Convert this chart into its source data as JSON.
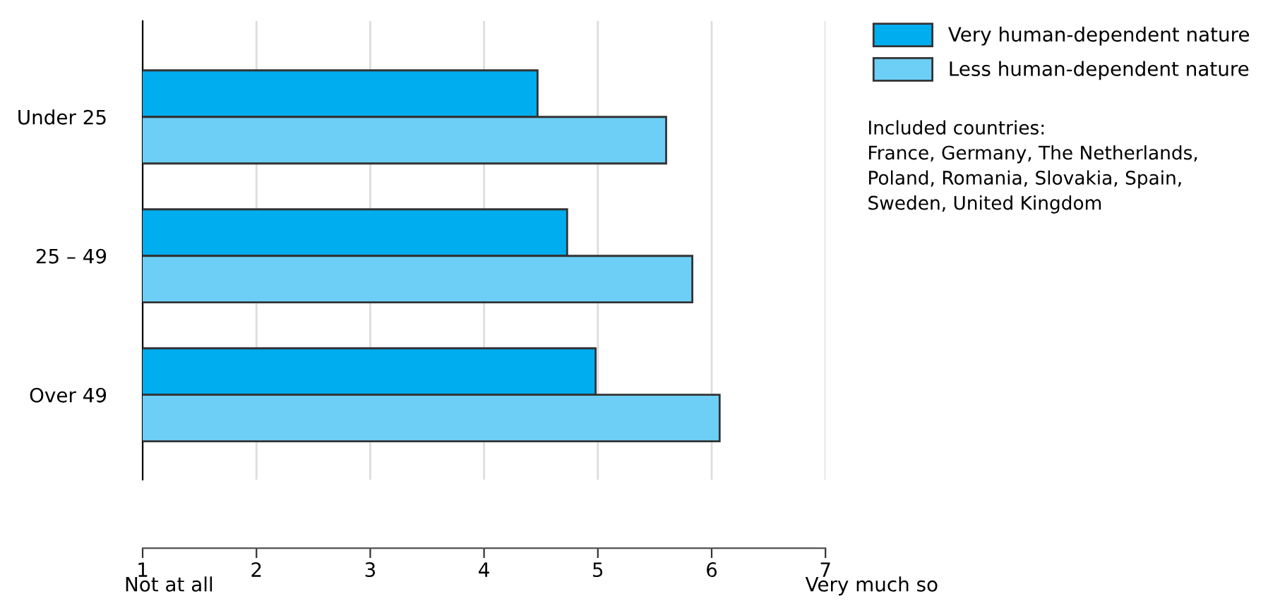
{
  "chart_data": {
    "type": "bar",
    "orientation": "horizontal",
    "categories": [
      "Under 25",
      "25 – 49",
      "Over 49"
    ],
    "series": [
      {
        "name": "Very human-dependent nature",
        "color": "#00adef",
        "values": [
          4.47,
          4.73,
          4.98
        ]
      },
      {
        "name": "Less human-dependent nature",
        "color": "#6dcff6",
        "values": [
          5.6,
          5.83,
          6.07
        ]
      }
    ],
    "xlim": [
      1,
      7
    ],
    "xticks": [
      1,
      2,
      3,
      4,
      5,
      6,
      7
    ],
    "grid": "x",
    "legend": "top right",
    "annotations": [
      "Not at all",
      "Very much so",
      "Included countries:\nFrance, Germany, The Netherlands,\nPoland, Romania, Slovakia, Spain,\nSweden, United Kingdom"
    ]
  }
}
